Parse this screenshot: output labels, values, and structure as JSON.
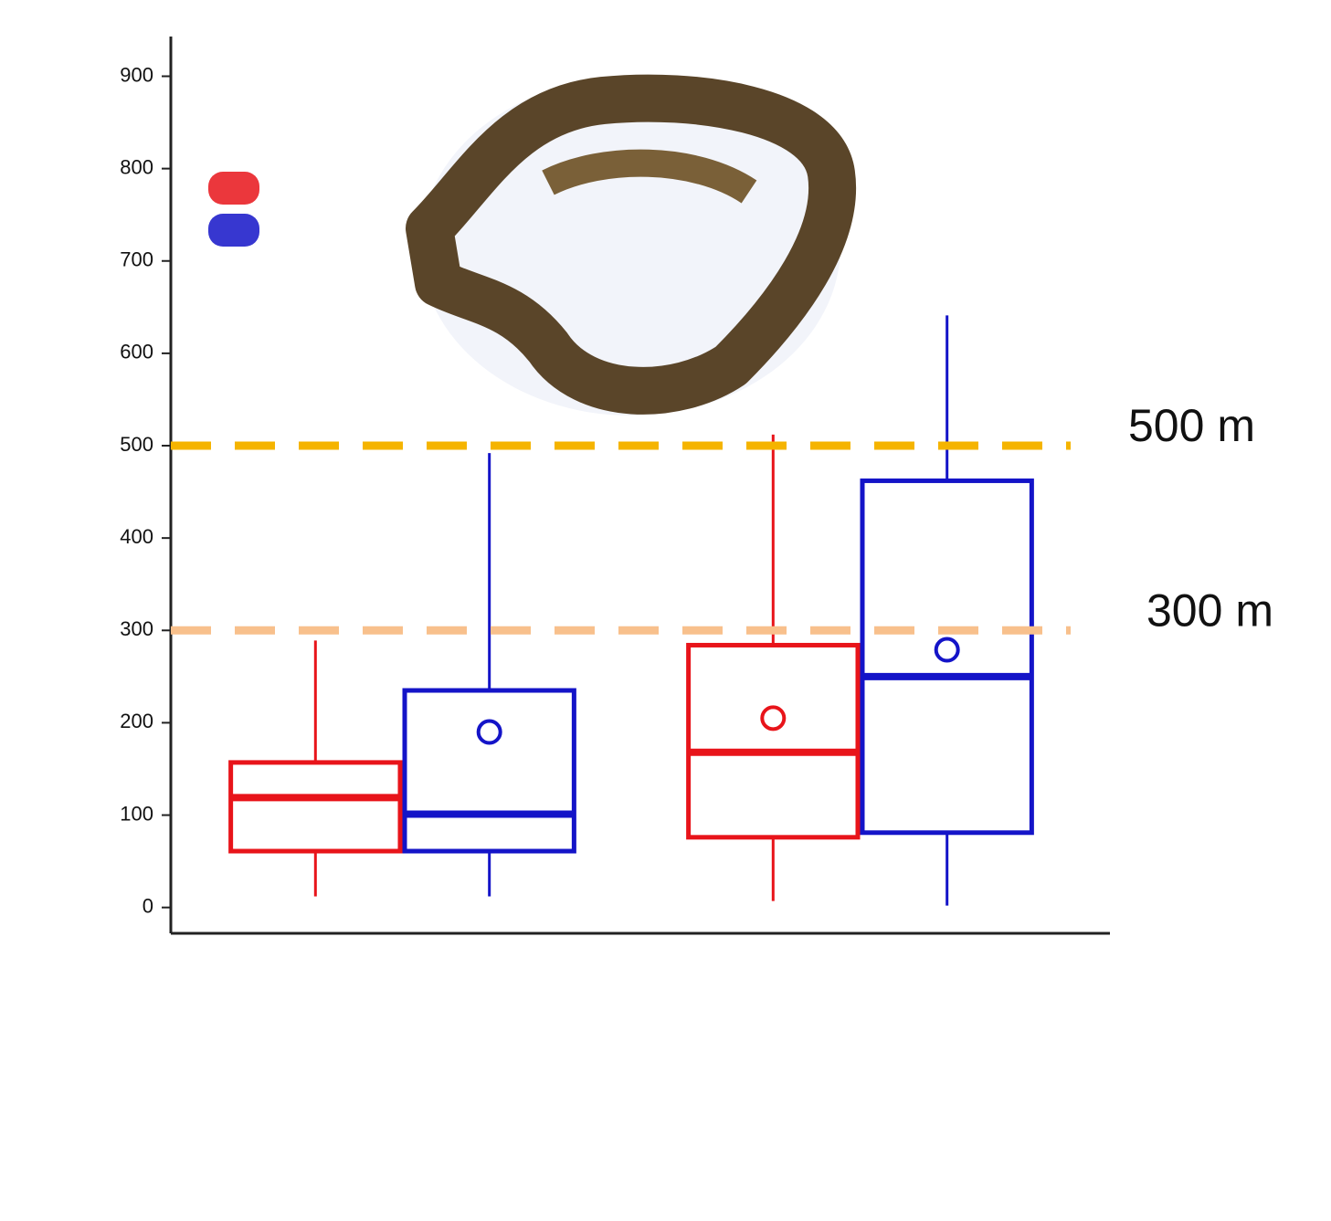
{
  "chart_data": {
    "type": "box",
    "categories": [
      null,
      null
    ],
    "series": [
      {
        "color": "#e8141a",
        "whislo": [
          12,
          7
        ],
        "q1": [
          61,
          76
        ],
        "median": [
          119,
          168
        ],
        "q3": [
          157,
          284
        ],
        "whishi": [
          289,
          512
        ],
        "means": [
          null,
          205
        ]
      },
      {
        "color": "#1414c8",
        "whislo": [
          12,
          2
        ],
        "q1": [
          61,
          81
        ],
        "median": [
          101,
          250
        ],
        "q3": [
          235,
          462
        ],
        "whishi": [
          492,
          641
        ],
        "means": [
          190,
          279
        ]
      }
    ],
    "reference_lines": [
      {
        "value": 500,
        "label": "500 m",
        "color": "#f5b400"
      },
      {
        "value": 300,
        "label": "300 m",
        "color": "#f8c08c"
      }
    ],
    "ylim": [
      -28,
      943
    ],
    "yticks": [
      0,
      100,
      200,
      300,
      400,
      500,
      600,
      700,
      800,
      900
    ]
  }
}
